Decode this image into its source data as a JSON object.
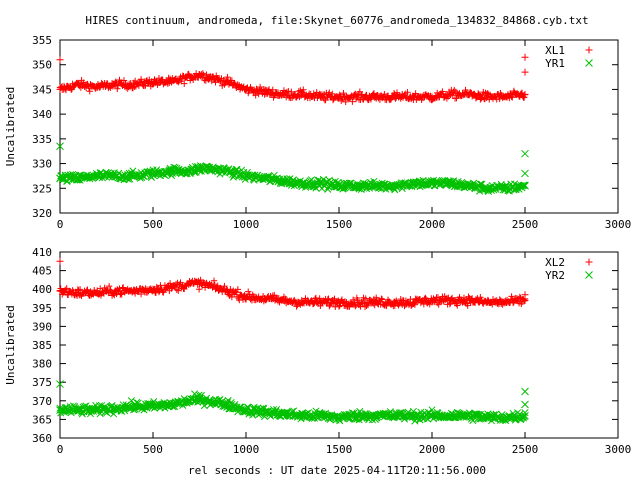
{
  "title": "HIRES continuum, andromeda, file:Skynet_60776_andromeda_134832_84868.cyb.txt",
  "xlabel": "rel seconds : UT date 2025-04-11T20:11:56.000",
  "colors": {
    "red": "#ff0000",
    "green": "#00c000"
  },
  "chart_data": [
    {
      "type": "scatter",
      "ylabel": "Uncalibrated",
      "xlim": [
        0,
        3000
      ],
      "ylim": [
        320,
        355
      ],
      "xticks": [
        0,
        500,
        1000,
        1500,
        2000,
        2500,
        3000
      ],
      "yticks": [
        320,
        325,
        330,
        335,
        340,
        345,
        350,
        355
      ],
      "legend_position": "top-right",
      "series": [
        {
          "name": "XL1",
          "color": "#ff0000",
          "marker": "plus",
          "x": [
            0,
            100,
            200,
            300,
            400,
            500,
            600,
            700,
            750,
            800,
            900,
            1000,
            1100,
            1200,
            1300,
            1400,
            1500,
            1600,
            1700,
            1800,
            1900,
            2000,
            2100,
            2200,
            2300,
            2400,
            2500
          ],
          "y": [
            345,
            346,
            345.5,
            346,
            346,
            346.5,
            346.5,
            347.5,
            348,
            347.5,
            346.5,
            345,
            344.5,
            344,
            344,
            343.5,
            343.5,
            343.5,
            343.5,
            343.5,
            343.5,
            343.5,
            344,
            344,
            343.5,
            343.5,
            344
          ],
          "outliers": [
            [
              0,
              351
            ],
            [
              2500,
              351.5
            ],
            [
              2500,
              348.5
            ]
          ]
        },
        {
          "name": "YR1",
          "color": "#00c000",
          "marker": "cross",
          "x": [
            0,
            100,
            200,
            300,
            400,
            500,
            600,
            700,
            750,
            800,
            900,
            1000,
            1100,
            1200,
            1300,
            1400,
            1500,
            1600,
            1700,
            1800,
            1900,
            2000,
            2100,
            2200,
            2300,
            2400,
            2500
          ],
          "y": [
            327,
            327,
            327.5,
            327.5,
            327.5,
            328,
            328.5,
            328.5,
            329,
            329,
            328.5,
            327.5,
            327,
            326.5,
            326,
            326,
            325.5,
            325.5,
            325.5,
            325.5,
            326,
            326,
            326,
            325.5,
            325,
            325,
            325.5
          ],
          "outliers": [
            [
              0,
              333.5
            ],
            [
              2500,
              332
            ],
            [
              2500,
              328
            ]
          ]
        }
      ]
    },
    {
      "type": "scatter",
      "ylabel": "Uncalibrated",
      "xlim": [
        0,
        3000
      ],
      "ylim": [
        360,
        410
      ],
      "xticks": [
        0,
        500,
        1000,
        1500,
        2000,
        2500,
        3000
      ],
      "yticks": [
        360,
        365,
        370,
        375,
        380,
        385,
        390,
        395,
        400,
        405,
        410
      ],
      "legend_position": "top-right",
      "series": [
        {
          "name": "XL2",
          "color": "#ff0000",
          "marker": "plus",
          "x": [
            0,
            100,
            200,
            300,
            400,
            500,
            600,
            700,
            750,
            800,
            900,
            1000,
            1100,
            1200,
            1300,
            1400,
            1500,
            1600,
            1700,
            1800,
            1900,
            2000,
            2100,
            2200,
            2300,
            2400,
            2500
          ],
          "y": [
            399.5,
            399,
            399,
            399.5,
            399.5,
            400,
            400.5,
            401.5,
            401.5,
            401,
            399.5,
            398,
            397.5,
            397,
            396.5,
            396.5,
            396.5,
            396.5,
            396.5,
            396.5,
            396.5,
            397,
            397,
            397,
            396.5,
            396.5,
            397
          ],
          "outliers": [
            [
              0,
              407.5
            ],
            [
              2500,
              398.5
            ]
          ]
        },
        {
          "name": "YR2",
          "color": "#00c000",
          "marker": "cross",
          "x": [
            0,
            100,
            200,
            300,
            400,
            500,
            600,
            700,
            750,
            800,
            900,
            1000,
            1100,
            1200,
            1300,
            1400,
            1500,
            1600,
            1700,
            1800,
            1900,
            2000,
            2100,
            2200,
            2300,
            2400,
            2500
          ],
          "y": [
            367.5,
            367.5,
            367.5,
            368,
            368.5,
            368.5,
            369,
            370,
            370.5,
            370,
            369,
            367.5,
            367,
            366.5,
            366,
            366,
            365.5,
            366,
            366,
            366,
            366,
            366,
            366,
            366,
            365.5,
            365.5,
            366
          ],
          "outliers": [
            [
              0,
              374.5
            ],
            [
              2500,
              372.5
            ],
            [
              2500,
              369
            ]
          ]
        }
      ]
    }
  ]
}
